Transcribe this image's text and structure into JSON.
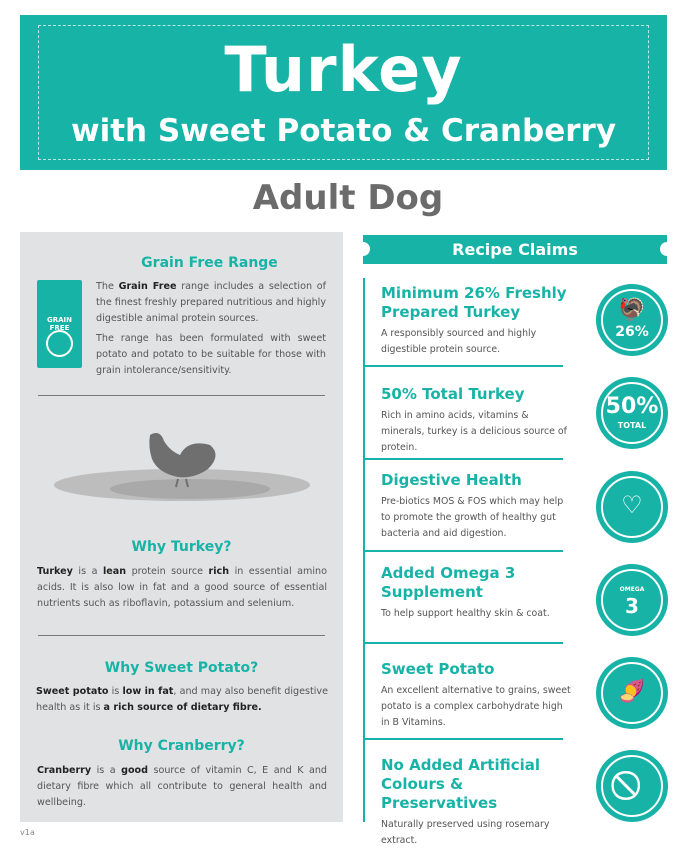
{
  "header": {
    "title": "Turkey",
    "subtitle": "with Sweet Potato & Cranberry",
    "life_stage": "Adult Dog"
  },
  "left": {
    "grain_free": {
      "heading": "Grain Free Range",
      "bag_label": "GRAIN FREE",
      "p1_pre": "The ",
      "p1_bold": "Grain Free",
      "p1_post": " range includes a selection of the finest freshly prepared nutritious and highly digestible animal protein sources.",
      "p2": "The range has been formulated with sweet potato and potato to be suitable for those with grain intolerance/sensitivity."
    },
    "why_turkey": {
      "heading": "Why Turkey?",
      "b1": "Turkey",
      "t1": " is a ",
      "b2": "lean",
      "t2": " protein source ",
      "b3": "rich",
      "t3": " in essential amino acids. It is also low in fat and a good source of essential nutrients such as riboflavin, potassium and selenium."
    },
    "why_sweet_potato": {
      "heading": "Why Sweet Potato?",
      "b1": "Sweet potato",
      "t1": " is ",
      "b2": "low in fat",
      "t2": ", and may also benefit digestive health as it is ",
      "b3": "a rich source of dietary fibre."
    },
    "why_cranberry": {
      "heading": "Why Cranberry?",
      "b1": "Cranberry",
      "t1": " is a ",
      "b2": "good",
      "t2": " source of vitamin C, E and K and dietary fibre which all contribute to general health and wellbeing."
    }
  },
  "right": {
    "banner": "Recipe Claims",
    "claims": [
      {
        "title": "Minimum 26% Freshly Prepared Turkey",
        "text": "A responsibly sourced and highly digestible protein source.",
        "icon": "turkey-26-icon",
        "badge": "26%"
      },
      {
        "title": "50% Total Turkey",
        "text": "Rich in amino acids, vitamins & minerals, turkey is a delicious source of protein.",
        "icon": "50-total-icon",
        "badge": "50%",
        "badge_sub": "TOTAL"
      },
      {
        "title": "Digestive Health",
        "text": "Pre-biotics MOS & FOS which may help to promote the growth of healthy gut bacteria and aid digestion.",
        "icon": "stomach-icon"
      },
      {
        "title": "Added Omega 3 Supplement",
        "text": "To help support healthy skin & coat.",
        "icon": "omega-3-icon",
        "badge": "3",
        "badge_sub": "OMEGA"
      },
      {
        "title": "Sweet Potato",
        "text": "An excellent alternative to grains, sweet potato is a complex carbohydrate high in B Vitamins.",
        "icon": "sweet-potato-icon"
      },
      {
        "title": "No Added Artificial Colours & Preservatives",
        "text": "Naturally preserved using rosemary extract.",
        "icon": "no-artificial-icon"
      }
    ]
  },
  "footer": {
    "version": "v1a"
  },
  "colors": {
    "teal": "#17b3a7",
    "panel": "#e1e2e3",
    "heading_gray": "#6b6b6b"
  }
}
